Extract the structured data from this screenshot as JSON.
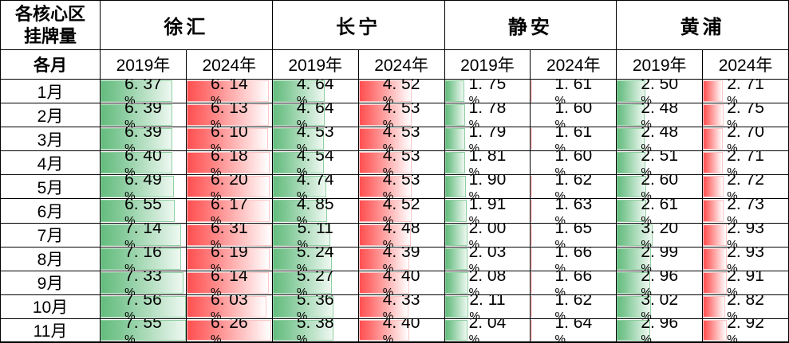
{
  "chart_data": {
    "type": "table",
    "title": "各核心区挂牌量",
    "corner": [
      "各核心区",
      "挂牌量"
    ],
    "row_header": "各月",
    "groups": [
      "徐汇",
      "长宁",
      "静安",
      "黄浦"
    ],
    "years": [
      "2019年",
      "2024年"
    ],
    "categories": [
      "1月",
      "2月",
      "3月",
      "4月",
      "5月",
      "6月",
      "7月",
      "8月",
      "9月",
      "10月",
      "11月"
    ],
    "series": [
      {
        "group": "徐汇",
        "year": "2019年",
        "style": "green",
        "values": [
          6.37,
          6.39,
          6.39,
          6.4,
          6.49,
          6.55,
          7.14,
          7.16,
          7.33,
          7.56,
          7.55
        ]
      },
      {
        "group": "徐汇",
        "year": "2024年",
        "style": "red",
        "values": [
          6.14,
          6.13,
          6.1,
          6.18,
          6.2,
          6.17,
          6.31,
          6.19,
          6.14,
          6.03,
          6.26
        ]
      },
      {
        "group": "长宁",
        "year": "2019年",
        "style": "green",
        "values": [
          4.64,
          4.64,
          4.53,
          4.54,
          4.74,
          4.85,
          5.11,
          5.24,
          5.27,
          5.36,
          5.38
        ]
      },
      {
        "group": "长宁",
        "year": "2024年",
        "style": "red",
        "values": [
          4.52,
          4.53,
          4.53,
          4.53,
          4.53,
          4.52,
          4.48,
          4.39,
          4.4,
          4.33,
          4.4
        ]
      },
      {
        "group": "静安",
        "year": "2019年",
        "style": "green",
        "values": [
          1.75,
          1.78,
          1.79,
          1.81,
          1.9,
          1.91,
          2.0,
          2.03,
          2.08,
          2.11,
          2.04
        ]
      },
      {
        "group": "静安",
        "year": "2024年",
        "style": "red",
        "values": [
          1.61,
          1.6,
          1.61,
          1.6,
          1.62,
          1.63,
          1.65,
          1.66,
          1.66,
          1.62,
          1.64
        ]
      },
      {
        "group": "黄浦",
        "year": "2019年",
        "style": "green",
        "values": [
          2.5,
          2.48,
          2.48,
          2.51,
          2.6,
          2.61,
          3.2,
          2.99,
          2.96,
          3.02,
          2.96
        ]
      },
      {
        "group": "黄浦",
        "year": "2024年",
        "style": "red",
        "values": [
          2.71,
          2.75,
          2.7,
          2.71,
          2.72,
          2.73,
          2.93,
          2.93,
          2.91,
          2.82,
          2.92
        ]
      }
    ],
    "databars": {
      "green": {
        "min": 0,
        "max": 7.56,
        "color": "#65bd7e",
        "border": "#8fcfa1"
      },
      "red": {
        "min": 1.6,
        "max": 6.31,
        "color": "#ff5051",
        "border": "#fdc6c6"
      }
    },
    "value_suffix": "%",
    "layout": {
      "grid": "on",
      "border_color": "#000000",
      "background": "#ffffff"
    }
  }
}
